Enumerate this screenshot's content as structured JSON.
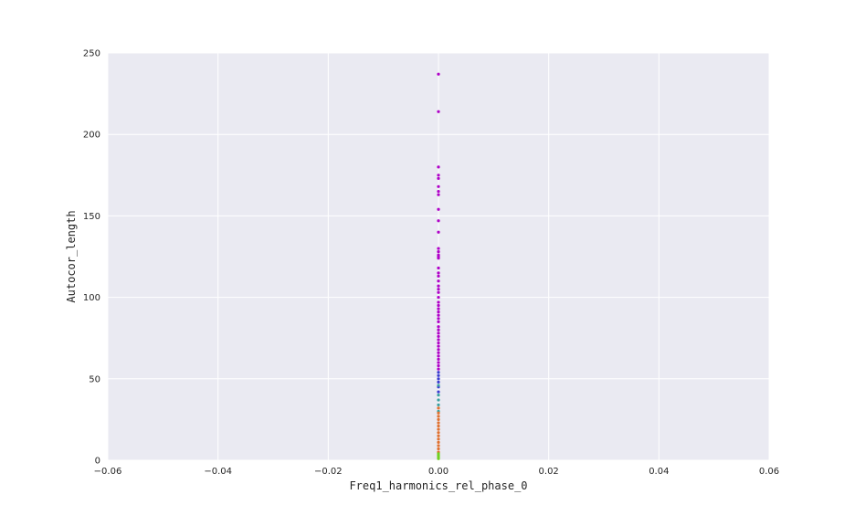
{
  "chart_data": {
    "type": "scatter",
    "title": "",
    "xlabel": "Freq1_harmonics_rel_phase_0",
    "ylabel": "Autocor_length",
    "xlim": [
      -0.06,
      0.06
    ],
    "ylim": [
      0,
      250
    ],
    "x_ticks": [
      "−0.06",
      "−0.04",
      "−0.02",
      "0.00",
      "0.02",
      "0.04",
      "0.06"
    ],
    "x_tick_values": [
      -0.06,
      -0.04,
      -0.02,
      0.0,
      0.02,
      0.04,
      0.06
    ],
    "y_ticks": [
      "0",
      "50",
      "100",
      "150",
      "200",
      "250"
    ],
    "y_tick_values": [
      0,
      50,
      100,
      150,
      200,
      250
    ],
    "grid": true,
    "legend": "none",
    "background_color": "#eaeaf2",
    "grid_color": "#ffffff",
    "series": [
      {
        "color": "#b000c8",
        "points": [
          [
            0,
            237
          ],
          [
            0,
            214
          ],
          [
            0,
            180
          ],
          [
            0,
            175
          ],
          [
            0,
            173
          ],
          [
            0,
            168
          ],
          [
            0,
            165
          ],
          [
            0,
            163
          ],
          [
            0,
            154
          ],
          [
            0,
            147
          ],
          [
            0,
            140
          ],
          [
            0,
            130
          ],
          [
            0,
            128
          ],
          [
            0,
            126
          ],
          [
            0,
            125
          ],
          [
            0,
            124
          ],
          [
            0,
            118
          ],
          [
            0,
            115
          ],
          [
            0,
            113
          ],
          [
            0,
            110
          ],
          [
            0,
            107
          ],
          [
            0,
            105
          ],
          [
            0,
            103
          ],
          [
            0,
            100
          ],
          [
            0,
            97
          ],
          [
            0,
            95
          ],
          [
            0,
            93
          ],
          [
            0,
            91
          ],
          [
            0,
            89
          ],
          [
            0,
            87
          ],
          [
            0,
            85
          ],
          [
            0,
            82
          ],
          [
            0,
            80
          ],
          [
            0,
            78
          ],
          [
            0,
            76
          ],
          [
            0,
            74
          ],
          [
            0,
            72
          ],
          [
            0,
            70
          ],
          [
            0,
            68
          ],
          [
            0,
            66
          ],
          [
            0,
            64
          ],
          [
            0,
            62
          ],
          [
            0,
            60
          ],
          [
            0,
            58
          ],
          [
            0,
            56
          ]
        ]
      },
      {
        "color": "#3a3ad0",
        "points": [
          [
            0,
            54
          ],
          [
            0,
            52
          ],
          [
            0,
            50
          ],
          [
            0,
            48
          ],
          [
            0,
            45
          ],
          [
            0,
            42
          ]
        ]
      },
      {
        "color": "#3aa0a0",
        "points": [
          [
            0,
            46
          ],
          [
            0,
            40
          ],
          [
            0,
            37
          ],
          [
            0,
            34
          ],
          [
            0,
            30
          ]
        ]
      },
      {
        "color": "#e07030",
        "points": [
          [
            0,
            32
          ],
          [
            0,
            29
          ],
          [
            0,
            27
          ],
          [
            0,
            25
          ],
          [
            0,
            23
          ],
          [
            0,
            21
          ],
          [
            0,
            19
          ],
          [
            0,
            17
          ],
          [
            0,
            15
          ],
          [
            0,
            13
          ],
          [
            0,
            11
          ],
          [
            0,
            9
          ],
          [
            0,
            7
          ],
          [
            0,
            5
          ]
        ]
      },
      {
        "color": "#70d020",
        "points": [
          [
            0,
            4
          ],
          [
            0,
            3
          ],
          [
            0,
            2
          ],
          [
            0,
            1
          ]
        ]
      }
    ]
  }
}
